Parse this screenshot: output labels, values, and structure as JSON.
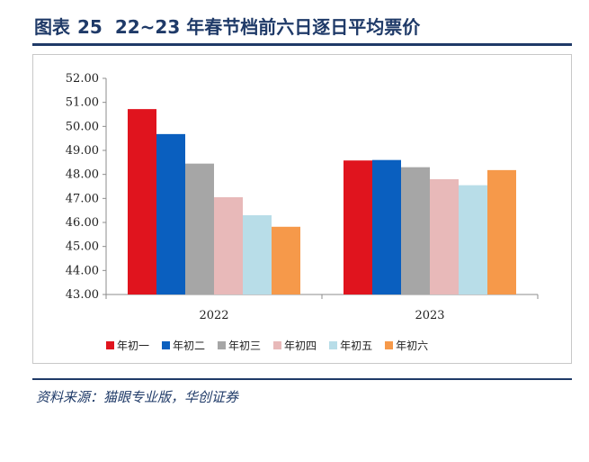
{
  "header": {
    "label": "图表",
    "number": "25",
    "title": "22~23 年春节档前六日逐日平均票价"
  },
  "source": "资料来源：猫眼专业版，华创证券",
  "chart_data": {
    "type": "bar",
    "title": "22~23 年春节档前六日逐日平均票价",
    "categories": [
      "2022",
      "2023"
    ],
    "ylim": [
      43.0,
      52.0
    ],
    "yticks": [
      "52.00",
      "51.00",
      "50.00",
      "49.00",
      "48.00",
      "47.00",
      "46.00",
      "45.00",
      "44.00",
      "43.00"
    ],
    "ytick_values": [
      52,
      51,
      50,
      49,
      48,
      47,
      46,
      45,
      44,
      43
    ],
    "series": [
      {
        "name": "年初一",
        "color": "#e0141e",
        "values": [
          50.72,
          48.58
        ]
      },
      {
        "name": "年初二",
        "color": "#0a5fbf",
        "values": [
          49.68,
          48.6
        ]
      },
      {
        "name": "年初三",
        "color": "#a6a6a6",
        "values": [
          48.45,
          48.3
        ]
      },
      {
        "name": "年初四",
        "color": "#e8b9b9",
        "values": [
          47.05,
          47.8
        ]
      },
      {
        "name": "年初五",
        "color": "#b8dde8",
        "values": [
          46.3,
          47.55
        ]
      },
      {
        "name": "年初六",
        "color": "#f6994a",
        "values": [
          45.82,
          48.18
        ]
      }
    ],
    "legend_position": "bottom"
  }
}
